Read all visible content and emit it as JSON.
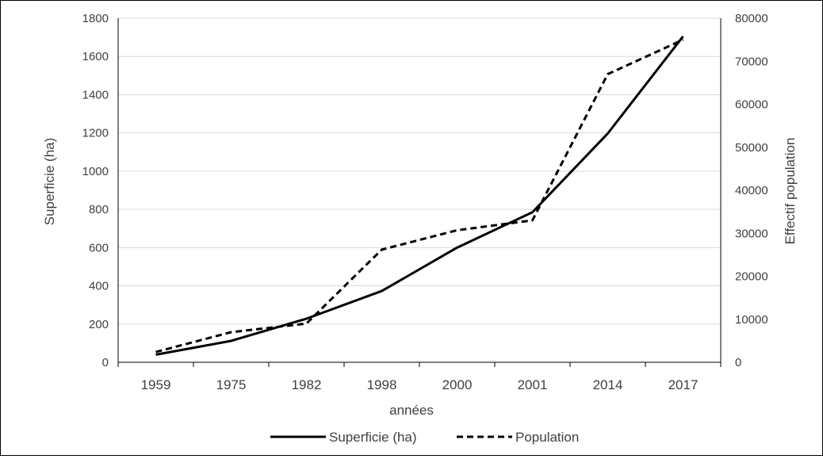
{
  "chart_data": {
    "type": "line",
    "title": "",
    "xlabel": "années",
    "ylabel": "Superficie (ha)",
    "y2label": "Effectif population",
    "categories": [
      "1959",
      "1975",
      "1982",
      "1998",
      "2000",
      "2001",
      "2014",
      "2017"
    ],
    "ylim": [
      0,
      1800
    ],
    "y_ticks": [
      "0",
      "200",
      "400",
      "600",
      "800",
      "1000",
      "1200",
      "1400",
      "1600",
      "1800"
    ],
    "y2lim": [
      0,
      80000
    ],
    "y2_ticks": [
      "0",
      "10000",
      "20000",
      "30000",
      "40000",
      "50000",
      "60000",
      "70000",
      "80000"
    ],
    "grid": true,
    "legend_position": "bottom",
    "series": [
      {
        "name": "Superficie (ha)",
        "axis": "left",
        "style": "solid",
        "color": "#000000",
        "values": [
          40,
          112,
          228,
          373,
          600,
          785,
          1197,
          1705
        ]
      },
      {
        "name": "Population",
        "axis": "right",
        "style": "dashed",
        "color": "#000000",
        "values": [
          2400,
          7000,
          9000,
          26200,
          30700,
          33000,
          67000,
          75000
        ]
      }
    ]
  }
}
